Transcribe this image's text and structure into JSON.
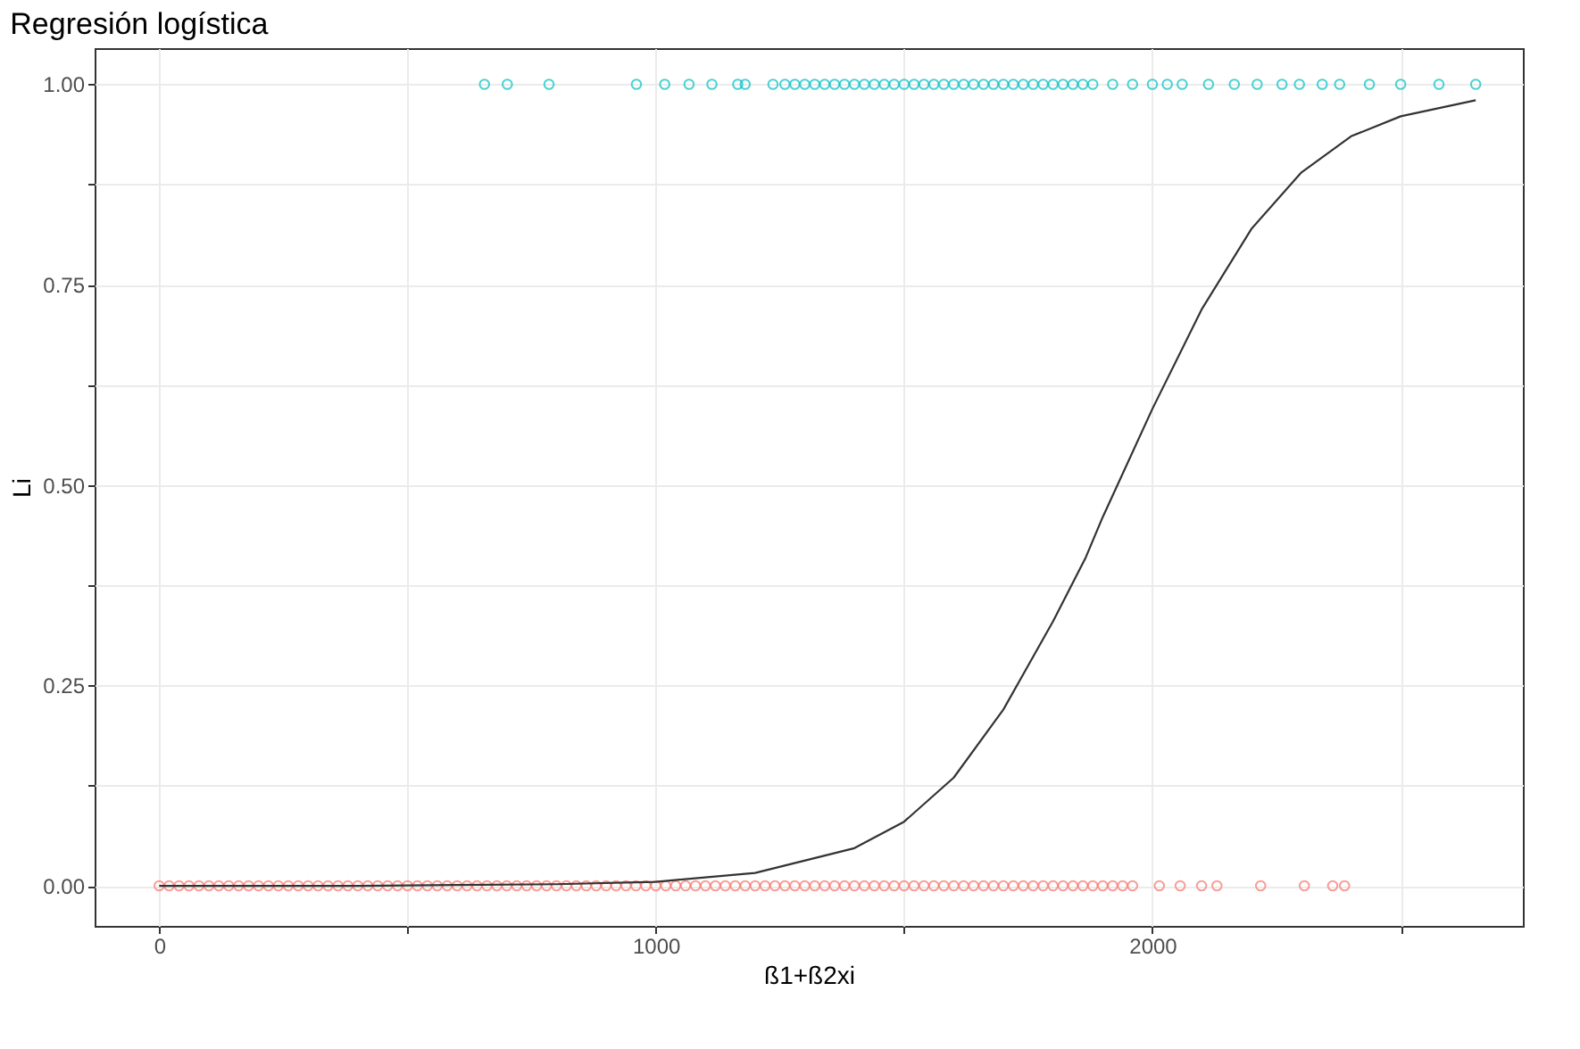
{
  "chart_data": {
    "type": "scatter",
    "title": "Regresión logística",
    "xlabel": "ß1+ß2xi",
    "ylabel": "Li",
    "xlim": [
      -130,
      2746
    ],
    "ylim": [
      -0.05,
      1.045
    ],
    "xticks": [
      0,
      {
        "value": 500,
        "label": null
      },
      1000,
      {
        "value": 1500,
        "label": null
      },
      2000,
      {
        "value": 2500,
        "label": null
      }
    ],
    "yticks": [
      {
        "value": 0,
        "label": "0.00"
      },
      {
        "value": 0.125,
        "label": null
      },
      {
        "value": 0.25,
        "label": "0.25"
      },
      {
        "value": 0.375,
        "label": null
      },
      {
        "value": 0.5,
        "label": "0.50"
      },
      {
        "value": 0.625,
        "label": null
      },
      {
        "value": 0.75,
        "label": "0.75"
      },
      {
        "value": 0.875,
        "label": null
      },
      {
        "value": 1,
        "label": "1.00"
      }
    ],
    "grid": true,
    "legend": false,
    "marker": "circle",
    "series": [
      {
        "color": "#f8766d",
        "x": [
          0,
          20,
          40,
          60,
          80,
          100,
          120,
          140,
          160,
          180,
          200,
          220,
          240,
          260,
          280,
          300,
          320,
          340,
          360,
          380,
          400,
          420,
          440,
          460,
          480,
          500,
          520,
          540,
          560,
          580,
          600,
          620,
          640,
          660,
          680,
          700,
          720,
          740,
          760,
          780,
          800,
          820,
          840,
          860,
          880,
          900,
          920,
          940,
          960,
          980,
          1000,
          1020,
          1040,
          1060,
          1080,
          1100,
          1120,
          1140,
          1160,
          1180,
          1200,
          1220,
          1240,
          1260,
          1280,
          1300,
          1320,
          1340,
          1360,
          1380,
          1400,
          1420,
          1440,
          1460,
          1480,
          1500,
          1520,
          1540,
          1560,
          1580,
          1600,
          1620,
          1640,
          1660,
          1680,
          1700,
          1720,
          1740,
          1760,
          1780,
          1800,
          1820,
          1840,
          1860,
          1880,
          1900,
          1920,
          1940,
          1960,
          2014,
          2056,
          2099,
          2130,
          2218,
          2306,
          2363,
          2387
        ],
        "values": [
          0,
          0,
          0,
          0,
          0,
          0,
          0,
          0,
          0,
          0,
          0,
          0,
          0,
          0,
          0,
          0,
          0,
          0,
          0,
          0,
          0,
          0,
          0,
          0,
          0,
          0,
          0,
          0,
          0,
          0,
          0,
          0,
          0,
          0,
          0,
          0,
          0,
          0,
          0,
          0,
          0,
          0,
          0,
          0,
          0,
          0,
          0,
          0,
          0,
          0,
          0,
          0,
          0,
          0,
          0,
          0,
          0,
          0,
          0,
          0,
          0,
          0,
          0,
          0,
          0,
          0,
          0,
          0,
          0,
          0,
          0,
          0,
          0,
          0,
          0,
          0,
          0,
          0,
          0,
          0,
          0,
          0,
          0,
          0,
          0,
          0,
          0,
          0,
          0,
          0,
          0,
          0,
          0,
          0,
          0,
          0,
          0,
          0,
          0,
          0,
          0,
          0,
          0,
          0,
          0,
          0,
          0
        ]
      },
      {
        "color": "#00bfc4",
        "x": [
          655,
          701,
          785,
          961,
          1018,
          1067,
          1113,
          1165,
          1180,
          1236,
          1260,
          1280,
          1300,
          1320,
          1340,
          1360,
          1380,
          1400,
          1420,
          1440,
          1460,
          1480,
          1500,
          1520,
          1540,
          1560,
          1580,
          1600,
          1620,
          1640,
          1660,
          1680,
          1700,
          1720,
          1740,
          1760,
          1780,
          1800,
          1820,
          1840,
          1860,
          1880,
          1920,
          1960,
          2000,
          2030,
          2060,
          2113,
          2165,
          2211,
          2261,
          2296,
          2342,
          2377,
          2437,
          2500,
          2577,
          2651
        ],
        "values": [
          1,
          1,
          1,
          1,
          1,
          1,
          1,
          1,
          1,
          1,
          1,
          1,
          1,
          1,
          1,
          1,
          1,
          1,
          1,
          1,
          1,
          1,
          1,
          1,
          1,
          1,
          1,
          1,
          1,
          1,
          1,
          1,
          1,
          1,
          1,
          1,
          1,
          1,
          1,
          1,
          1,
          1,
          1,
          1,
          1,
          1,
          1,
          1,
          1,
          1,
          1,
          1,
          1,
          1,
          1,
          1,
          1,
          1
        ]
      },
      {
        "type": "line",
        "color": "#333333",
        "marker": "none",
        "line_style": "solid",
        "x": [
          0,
          200,
          400,
          600,
          800,
          1000,
          1200,
          1400,
          1500,
          1600,
          1700,
          1800,
          1866,
          1900,
          2000,
          2100,
          2200,
          2300,
          2400,
          2500,
          2651
        ],
        "values": [
          0,
          0,
          0,
          0.001,
          0.002,
          0.005,
          0.016,
          0.047,
          0.08,
          0.135,
          0.22,
          0.33,
          0.41,
          0.46,
          0.595,
          0.72,
          0.82,
          0.89,
          0.935,
          0.96,
          0.98
        ]
      }
    ]
  }
}
